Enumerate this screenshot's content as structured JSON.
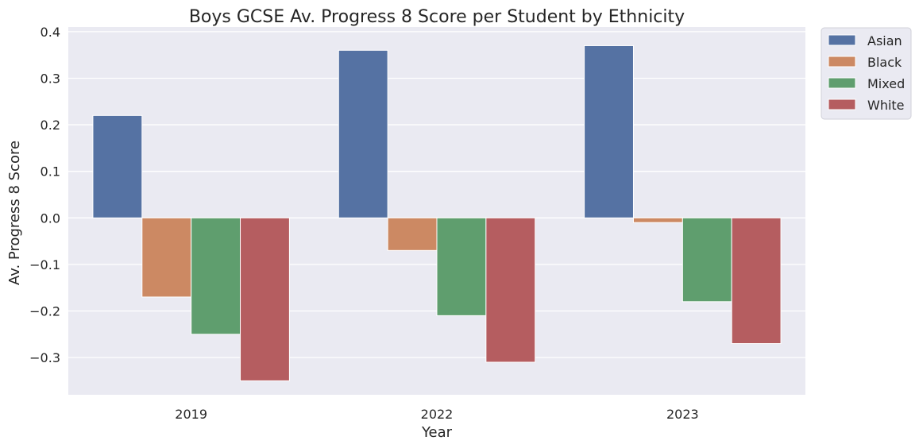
{
  "chart_data": {
    "type": "bar",
    "title": "Boys GCSE Av. Progress 8 Score per Student by Ethnicity",
    "xlabel": "Year",
    "ylabel": "Av. Progress 8 Score",
    "categories": [
      "2019",
      "2022",
      "2023"
    ],
    "series": [
      {
        "name": "Asian",
        "color": "#5572a3",
        "values": [
          0.22,
          0.36,
          0.37
        ]
      },
      {
        "name": "Black",
        "color": "#cc8963",
        "values": [
          -0.17,
          -0.07,
          -0.01
        ]
      },
      {
        "name": "Mixed",
        "color": "#5f9e6e",
        "values": [
          -0.25,
          -0.21,
          -0.18
        ]
      },
      {
        "name": "White",
        "color": "#b55d60",
        "values": [
          -0.35,
          -0.31,
          -0.27
        ]
      }
    ],
    "ylim": [
      -0.38,
      0.41
    ],
    "yticks": [
      0.4,
      0.3,
      0.2,
      0.1,
      0.0,
      -0.1,
      -0.2,
      -0.3
    ],
    "ytick_labels": [
      "0.4",
      "0.3",
      "0.2",
      "0.1",
      "0.0",
      "−0.1",
      "−0.2",
      "−0.3"
    ],
    "grid": true,
    "background": "#eaeaf2",
    "legend_position": "outside-top-right"
  }
}
